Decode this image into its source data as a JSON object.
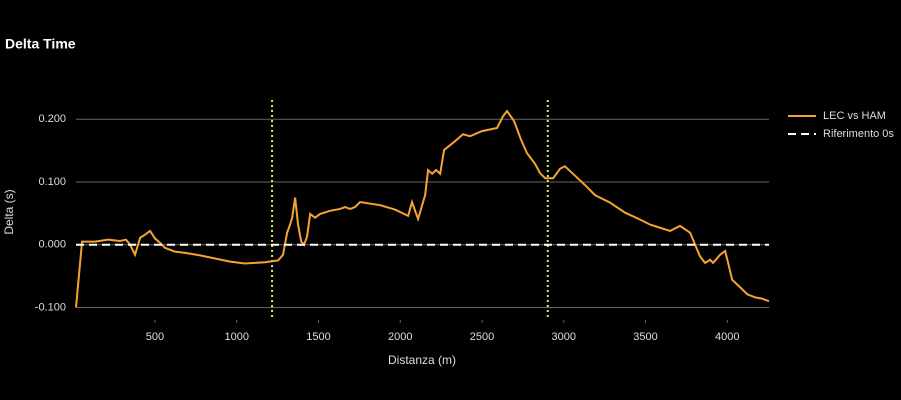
{
  "chart_data": {
    "type": "line",
    "title": "Delta Time",
    "x_label": "Distanza (m)",
    "y_label": "Delta (s)",
    "x": [
      17,
      54,
      133,
      213,
      286,
      323,
      348,
      378,
      409,
      439,
      470,
      500,
      531,
      561,
      622,
      684,
      776,
      867,
      959,
      1050,
      1112,
      1173,
      1253,
      1283,
      1308,
      1326,
      1339,
      1357,
      1375,
      1394,
      1412,
      1430,
      1449,
      1479,
      1510,
      1571,
      1632,
      1663,
      1693,
      1724,
      1754,
      1877,
      1968,
      2048,
      2072,
      2109,
      2152,
      2170,
      2195,
      2219,
      2244,
      2268,
      2335,
      2384,
      2427,
      2500,
      2592,
      2629,
      2653,
      2696,
      2739,
      2775,
      2824,
      2855,
      2886,
      2935,
      2977,
      3007,
      3069,
      3130,
      3191,
      3283,
      3375,
      3467,
      3528,
      3589,
      3650,
      3711,
      3773,
      3803,
      3834,
      3864,
      3895,
      3913,
      3956,
      3987,
      4030,
      4079,
      4122,
      4171,
      4214,
      4255
    ],
    "series": [
      {
        "name": "LEC vs HAM",
        "color": "#f5a431",
        "values": [
          -0.1,
          0.005,
          0.005,
          0.008,
          0.006,
          0.008,
          0.0,
          -0.016,
          0.011,
          0.016,
          0.022,
          0.01,
          0.003,
          -0.005,
          -0.011,
          -0.013,
          -0.017,
          -0.022,
          -0.027,
          -0.03,
          -0.029,
          -0.028,
          -0.025,
          -0.016,
          0.019,
          0.032,
          0.043,
          0.075,
          0.032,
          0.005,
          0.0,
          0.013,
          0.049,
          0.043,
          0.049,
          0.054,
          0.057,
          0.06,
          0.057,
          0.06,
          0.068,
          0.063,
          0.056,
          0.046,
          0.068,
          0.041,
          0.079,
          0.119,
          0.113,
          0.119,
          0.113,
          0.151,
          0.165,
          0.176,
          0.173,
          0.181,
          0.186,
          0.205,
          0.213,
          0.197,
          0.167,
          0.146,
          0.129,
          0.114,
          0.106,
          0.106,
          0.121,
          0.125,
          0.11,
          0.095,
          0.079,
          0.067,
          0.051,
          0.04,
          0.032,
          0.027,
          0.022,
          0.03,
          0.019,
          0.0,
          -0.019,
          -0.029,
          -0.024,
          -0.029,
          -0.016,
          -0.01,
          -0.056,
          -0.068,
          -0.079,
          -0.084,
          -0.086,
          -0.09
        ]
      }
    ],
    "reference_line": {
      "name": "Riferimento 0s",
      "value": 0,
      "color": "#ffffff"
    },
    "vlines": [
      1216,
      2902
    ],
    "vline_color": "#d8ec6a",
    "xlim": [
      17,
      4255
    ],
    "ylim": [
      -0.12,
      0.237
    ],
    "xticks": [
      500,
      1000,
      1500,
      2000,
      2500,
      3000,
      3500,
      4000
    ],
    "yticks": [
      {
        "value": -0.1,
        "label": "-0.100"
      },
      {
        "value": 0,
        "label": "0.000"
      },
      {
        "value": 0.1,
        "label": "0.100"
      },
      {
        "value": 0.2,
        "label": "0.200"
      }
    ],
    "grid": true
  }
}
